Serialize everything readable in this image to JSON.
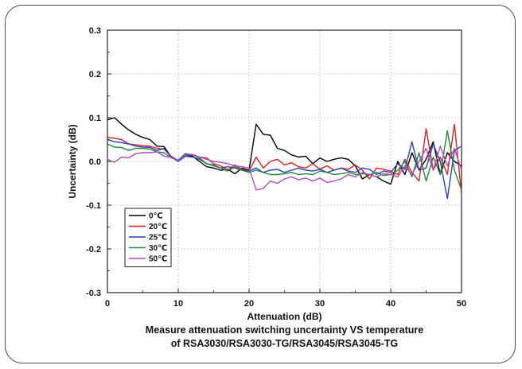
{
  "chart_data": {
    "type": "line",
    "xlabel": "Attenuation (dB)",
    "ylabel": "Uncertainty (dB)",
    "caption_lines": [
      "Measure attenuation switching uncertainty VS temperature",
      "of RSA3030/RSA3030-TG/RSA3045/RSA3045-TG"
    ],
    "xlim": [
      0,
      50
    ],
    "ylim": [
      -0.3,
      0.3
    ],
    "x_ticks": [
      0,
      10,
      20,
      30,
      40,
      50
    ],
    "y_ticks": [
      0.3,
      0.2,
      0.1,
      0.0,
      -0.1,
      -0.2,
      -0.3
    ],
    "y_tick_labels": [
      "0.3",
      "0.2",
      "0.1",
      "0.0",
      "-0.1",
      "-0.2",
      "-0.3"
    ],
    "grid": true,
    "legend_position": "bottom-left",
    "series": [
      {
        "name": "0℃",
        "color": "#000000",
        "x": [
          0,
          1,
          2,
          3,
          4,
          5,
          6,
          7,
          8,
          9,
          10,
          11,
          12,
          13,
          14,
          15,
          16,
          17,
          18,
          19,
          20,
          21,
          22,
          23,
          24,
          25,
          26,
          27,
          28,
          29,
          30,
          31,
          32,
          33,
          34,
          35,
          36,
          37,
          38,
          39,
          40,
          41,
          42,
          43,
          44,
          45,
          46,
          47,
          48,
          49,
          50
        ],
        "y": [
          0.095,
          0.1,
          0.085,
          0.072,
          0.062,
          0.055,
          0.05,
          0.035,
          0.034,
          0.01,
          0.002,
          0.015,
          0.012,
          0.0,
          -0.012,
          -0.015,
          -0.02,
          -0.018,
          -0.028,
          -0.015,
          -0.02,
          0.085,
          0.062,
          0.06,
          0.03,
          0.025,
          0.015,
          0.01,
          0.012,
          -0.005,
          0.008,
          0.0,
          0.005,
          0.008,
          0.005,
          -0.01,
          -0.04,
          -0.03,
          -0.035,
          -0.045,
          -0.052,
          0.0,
          -0.03,
          0.02,
          -0.02,
          0.005,
          0.045,
          -0.03,
          0.02,
          0.0,
          -0.01
        ]
      },
      {
        "name": "20℃",
        "color": "#e02020",
        "x": [
          0,
          1,
          2,
          3,
          4,
          5,
          6,
          7,
          8,
          9,
          10,
          11,
          12,
          13,
          14,
          15,
          16,
          17,
          18,
          19,
          20,
          21,
          22,
          23,
          24,
          25,
          26,
          27,
          28,
          29,
          30,
          31,
          32,
          33,
          34,
          35,
          36,
          37,
          38,
          39,
          40,
          41,
          42,
          43,
          44,
          45,
          46,
          47,
          48,
          49,
          50
        ],
        "y": [
          0.055,
          0.053,
          0.05,
          0.04,
          0.038,
          0.036,
          0.035,
          0.03,
          0.028,
          0.012,
          0.002,
          0.015,
          0.016,
          0.01,
          0.008,
          -0.005,
          -0.01,
          -0.02,
          -0.008,
          -0.018,
          -0.022,
          0.01,
          -0.015,
          0.0,
          0.005,
          -0.008,
          -0.003,
          -0.012,
          -0.015,
          -0.005,
          -0.018,
          -0.01,
          -0.02,
          -0.015,
          -0.018,
          -0.008,
          -0.02,
          -0.04,
          -0.015,
          -0.018,
          -0.022,
          -0.03,
          0.005,
          -0.025,
          -0.045,
          0.075,
          -0.02,
          0.01,
          -0.03,
          0.085,
          -0.075
        ]
      },
      {
        "name": "25℃",
        "color": "#2a3fbf",
        "x": [
          0,
          1,
          2,
          3,
          4,
          5,
          6,
          7,
          8,
          9,
          10,
          11,
          12,
          13,
          14,
          15,
          16,
          17,
          18,
          19,
          20,
          21,
          22,
          23,
          24,
          25,
          26,
          27,
          28,
          29,
          30,
          31,
          32,
          33,
          34,
          35,
          36,
          37,
          38,
          39,
          40,
          41,
          42,
          43,
          44,
          45,
          46,
          47,
          48,
          49,
          50
        ],
        "y": [
          0.05,
          0.045,
          0.043,
          0.04,
          0.035,
          0.033,
          0.032,
          0.025,
          0.03,
          0.01,
          0.0,
          0.012,
          0.01,
          0.005,
          -0.005,
          -0.01,
          -0.015,
          -0.012,
          -0.015,
          -0.02,
          -0.022,
          -0.015,
          -0.025,
          -0.02,
          -0.018,
          -0.025,
          -0.02,
          -0.015,
          -0.02,
          -0.022,
          -0.018,
          -0.025,
          -0.02,
          -0.015,
          -0.022,
          -0.025,
          -0.015,
          -0.018,
          -0.03,
          -0.022,
          -0.025,
          -0.005,
          -0.018,
          0.045,
          -0.02,
          -0.015,
          0.04,
          0.0,
          -0.085,
          0.025,
          0.035
        ]
      },
      {
        "name": "30℃",
        "color": "#1f8a3a",
        "x": [
          0,
          1,
          2,
          3,
          4,
          5,
          6,
          7,
          8,
          9,
          10,
          11,
          12,
          13,
          14,
          15,
          16,
          17,
          18,
          19,
          20,
          21,
          22,
          23,
          24,
          25,
          26,
          27,
          28,
          29,
          30,
          31,
          32,
          33,
          34,
          35,
          36,
          37,
          38,
          39,
          40,
          41,
          42,
          43,
          44,
          45,
          46,
          47,
          48,
          49,
          50
        ],
        "y": [
          0.04,
          0.033,
          0.032,
          0.025,
          0.03,
          0.03,
          0.028,
          0.022,
          0.02,
          0.008,
          0.003,
          0.018,
          0.015,
          0.008,
          -0.005,
          -0.008,
          -0.015,
          -0.022,
          -0.012,
          -0.02,
          -0.025,
          -0.02,
          -0.025,
          -0.03,
          -0.03,
          -0.028,
          -0.025,
          -0.03,
          -0.028,
          -0.03,
          -0.022,
          -0.025,
          -0.03,
          -0.028,
          -0.025,
          -0.03,
          -0.028,
          -0.03,
          -0.025,
          -0.032,
          -0.03,
          -0.02,
          0.0,
          -0.035,
          0.02,
          -0.045,
          0.01,
          -0.03,
          0.07,
          -0.02,
          -0.065
        ]
      },
      {
        "name": "50℃",
        "color": "#b04bc0",
        "x": [
          0,
          1,
          2,
          3,
          4,
          5,
          6,
          7,
          8,
          9,
          10,
          11,
          12,
          13,
          14,
          15,
          16,
          17,
          18,
          19,
          20,
          21,
          22,
          23,
          24,
          25,
          26,
          27,
          28,
          29,
          30,
          31,
          32,
          33,
          34,
          35,
          36,
          37,
          38,
          39,
          40,
          41,
          42,
          43,
          44,
          45,
          46,
          47,
          48,
          49,
          50
        ],
        "y": [
          0.005,
          -0.002,
          0.01,
          0.008,
          0.018,
          0.02,
          0.02,
          0.022,
          0.012,
          0.01,
          0.002,
          0.015,
          0.015,
          0.01,
          0.005,
          0.0,
          -0.002,
          -0.005,
          -0.01,
          -0.012,
          -0.015,
          -0.065,
          -0.062,
          -0.045,
          -0.05,
          -0.04,
          -0.035,
          -0.042,
          -0.038,
          -0.045,
          -0.038,
          -0.048,
          -0.045,
          -0.04,
          -0.03,
          -0.035,
          -0.025,
          -0.03,
          -0.035,
          -0.028,
          -0.03,
          -0.035,
          -0.01,
          -0.03,
          0.0,
          0.03,
          -0.02,
          0.035,
          -0.01,
          0.03,
          -0.02
        ]
      }
    ]
  }
}
